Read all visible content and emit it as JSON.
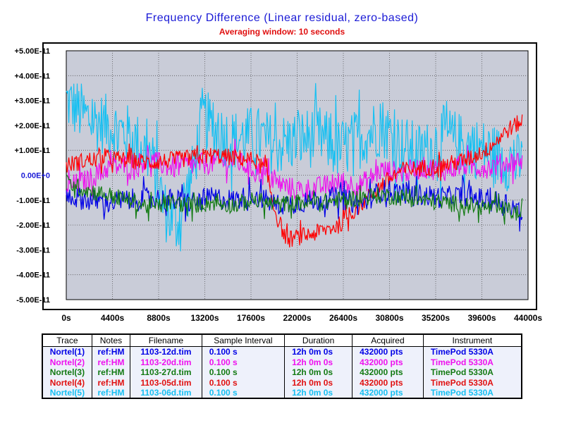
{
  "chart_data": {
    "type": "line",
    "title": "Frequency Difference  (Linear residual,  zero-based)",
    "subtitle": "Averaging window: 10 seconds",
    "x_tick_labels": [
      "0s",
      "4400s",
      "8800s",
      "13200s",
      "17600s",
      "22000s",
      "26400s",
      "30800s",
      "35200s",
      "39600s",
      "44000s"
    ],
    "x_ticks": [
      0,
      4400,
      8800,
      13200,
      17600,
      22000,
      26400,
      30800,
      35200,
      39600,
      44000
    ],
    "xlim": [
      0,
      44000
    ],
    "y_tick_labels": [
      "+5.00E-11",
      "+4.00E-11",
      "+3.00E-11",
      "+2.00E-11",
      "+1.00E-11",
      "0.00E+0",
      "-1.00E-11",
      "-2.00E-11",
      "-3.00E-11",
      "-4.00E-11",
      "-5.00E-11"
    ],
    "y_ticks": [
      5,
      4,
      3,
      2,
      1,
      0,
      -1,
      -2,
      -3,
      -4,
      -5
    ],
    "y_unit_scale": "1E-11",
    "ylim": [
      -5,
      5
    ],
    "grid": true,
    "plot_background": "#c9ccd8",
    "series": [
      {
        "name": "Nortel(1)",
        "color": "#0000e6",
        "x": [
          0,
          2000,
          4000,
          6000,
          8000,
          10000,
          12000,
          14000,
          16000,
          18000,
          20000,
          22000,
          24000,
          26000,
          28000,
          30000,
          32000,
          34000,
          36000,
          38000,
          40000,
          42000,
          43500
        ],
        "y": [
          -0.8,
          -1.0,
          -1.1,
          -1.0,
          -0.9,
          -1.0,
          -1.1,
          -0.9,
          -1.0,
          -0.8,
          -1.2,
          -1.1,
          -1.0,
          -0.9,
          -1.2,
          -0.6,
          -0.7,
          -0.8,
          -0.9,
          -0.8,
          -1.0,
          -1.1,
          -1.5
        ]
      },
      {
        "name": "Nortel(2)",
        "color": "#ee10ee",
        "x": [
          0,
          2000,
          4000,
          6000,
          8000,
          10000,
          12000,
          14000,
          16000,
          18000,
          20000,
          22000,
          24000,
          26000,
          28000,
          30000,
          32000,
          34000,
          36000,
          38000,
          40000,
          42000,
          43500
        ],
        "y": [
          -0.5,
          -0.2,
          0.3,
          0.4,
          0.6,
          0.3,
          0.4,
          0.5,
          0.6,
          0.2,
          -0.3,
          -0.6,
          -0.5,
          -0.3,
          -0.4,
          0.2,
          0.1,
          0.3,
          0.2,
          0.4,
          0.3,
          0.5,
          0.6
        ]
      },
      {
        "name": "Nortel(3)",
        "color": "#127a12",
        "x": [
          0,
          2000,
          4000,
          6000,
          8000,
          10000,
          12000,
          14000,
          16000,
          18000,
          20000,
          22000,
          24000,
          26000,
          28000,
          30000,
          32000,
          34000,
          36000,
          38000,
          40000,
          42000,
          43500
        ],
        "y": [
          -0.3,
          -0.6,
          -0.8,
          -1.0,
          -1.3,
          -1.1,
          -1.2,
          -1.1,
          -1.2,
          -1.0,
          -1.2,
          -1.1,
          -1.1,
          -1.0,
          -0.9,
          -0.8,
          -0.9,
          -1.0,
          -1.1,
          -1.2,
          -1.3,
          -1.4,
          -1.6
        ]
      },
      {
        "name": "Nortel(4)",
        "color": "#ff0000",
        "x": [
          0,
          2000,
          4000,
          6000,
          8000,
          10000,
          12000,
          14000,
          16000,
          18000,
          19000,
          20000,
          21000,
          22000,
          24000,
          26000,
          28000,
          30000,
          32000,
          34000,
          36000,
          38000,
          40000,
          42000,
          43500
        ],
        "y": [
          0.4,
          0.6,
          0.7,
          0.6,
          0.5,
          0.6,
          0.7,
          0.8,
          0.7,
          0.6,
          0.2,
          -1.6,
          -2.6,
          -2.5,
          -2.3,
          -2.0,
          -1.2,
          -0.4,
          0.2,
          0.3,
          0.4,
          0.6,
          1.0,
          1.8,
          2.2
        ]
      },
      {
        "name": "Nortel(5)",
        "color": "#16c0f2",
        "x": [
          0,
          2000,
          4000,
          6000,
          8000,
          9500,
          10500,
          12000,
          13000,
          14000,
          16000,
          18000,
          20000,
          22000,
          24000,
          26000,
          28000,
          30000,
          32000,
          34000,
          36000,
          38000,
          40000,
          42000,
          43500
        ],
        "y": [
          3.0,
          2.3,
          2.0,
          1.6,
          0.8,
          -1.5,
          -2.0,
          0.0,
          2.4,
          1.8,
          1.4,
          1.6,
          1.2,
          1.4,
          1.6,
          1.0,
          1.5,
          2.0,
          1.2,
          0.8,
          1.6,
          1.2,
          1.0,
          0.6,
          0.4
        ]
      }
    ]
  },
  "table": {
    "headers": [
      "Trace",
      "Notes",
      "Filename",
      "Sample Interval",
      "Duration",
      "Acquired",
      "Instrument"
    ],
    "rows": [
      {
        "color": "#0000e6",
        "cells": [
          "Nortel(1)",
          "ref:HM",
          "1103-12d.tim",
          "0.100 s",
          "12h 0m 0s",
          "432000 pts",
          "TimePod 5330A"
        ]
      },
      {
        "color": "#ee10ee",
        "cells": [
          "Nortel(2)",
          "ref:HM",
          "1103-20d.tim",
          "0.100 s",
          "12h 0m 0s",
          "432000 pts",
          "TimePod 5330A"
        ]
      },
      {
        "color": "#127a12",
        "cells": [
          "Nortel(3)",
          "ref:HM",
          "1103-27d.tim",
          "0.100 s",
          "12h 0m 0s",
          "432000 pts",
          "TimePod 5330A"
        ]
      },
      {
        "color": "#e01010",
        "cells": [
          "Nortel(4)",
          "ref:HM",
          "1103-05d.tim",
          "0.100 s",
          "12h 0m 0s",
          "432000 pts",
          "TimePod 5330A"
        ]
      },
      {
        "color": "#16c0f2",
        "cells": [
          "Nortel(5)",
          "ref:HM",
          "1103-06d.tim",
          "0.100 s",
          "12h 0m 0s",
          "432000 pts",
          "TimePod 5330A"
        ]
      }
    ]
  },
  "colors": {
    "title": "#1a1ad6",
    "subtitle": "#e01010",
    "zero_label": "#1a1ad6",
    "axis_label": "#000000"
  }
}
